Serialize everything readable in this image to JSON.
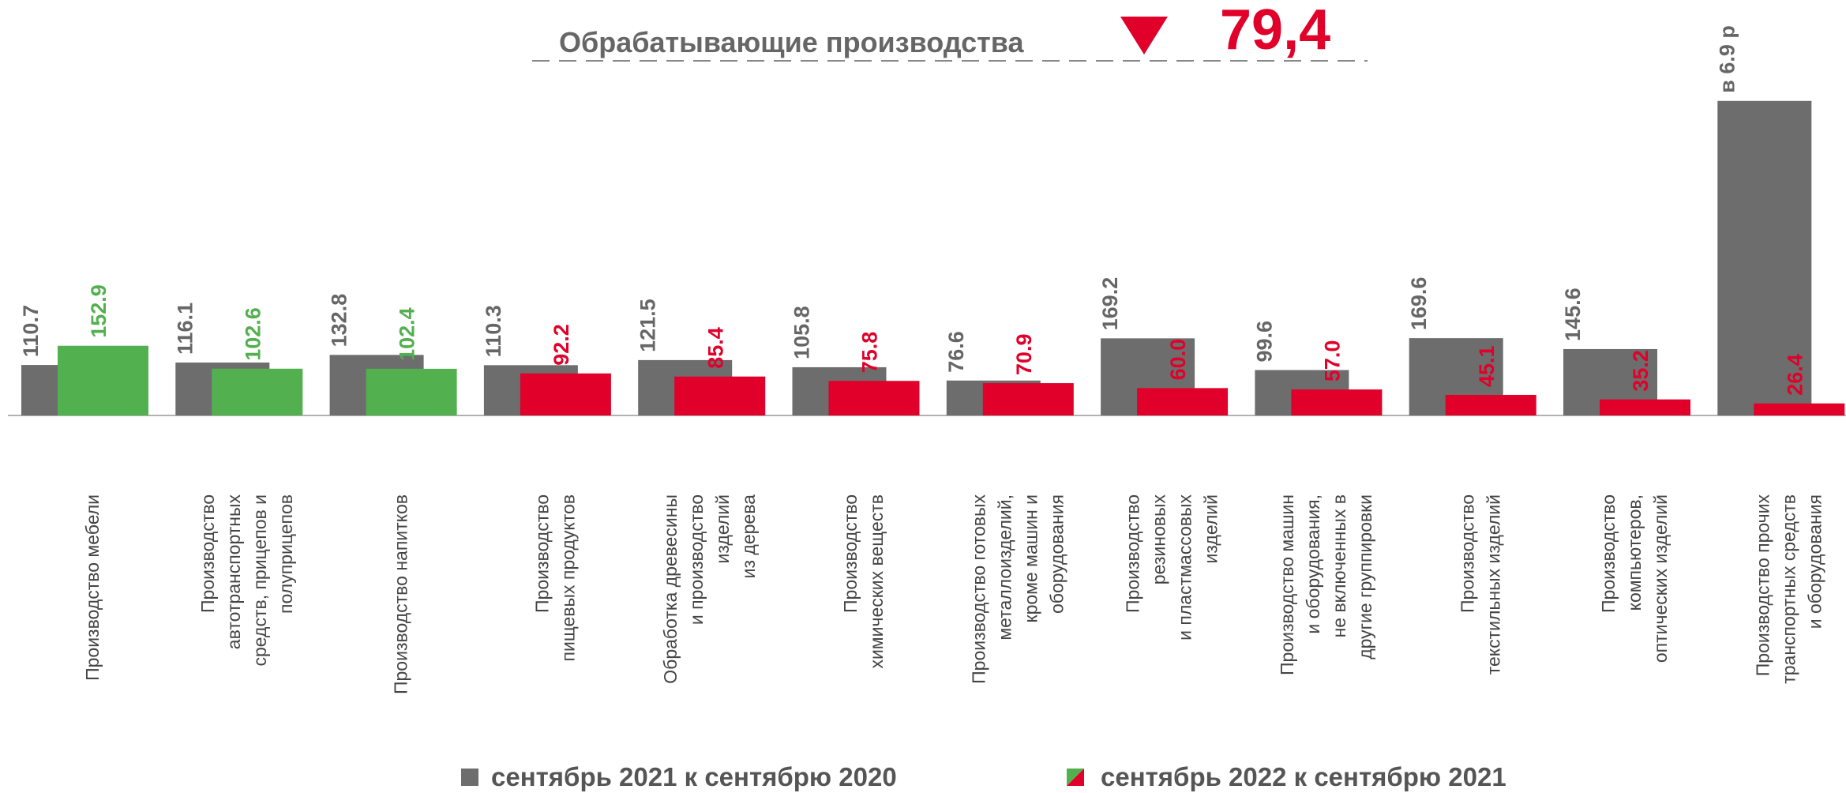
{
  "chart_data": {
    "type": "bar",
    "headline": {
      "label": "Обрабатывающие производства",
      "value": 79.4,
      "value_label": "79,4",
      "color": "#e0002a"
    },
    "categories": [
      [
        "Производство мебели"
      ],
      [
        "Производство",
        "автотранспортных",
        "средств, прицепов и",
        "полуприцепов"
      ],
      [
        "Производство напитков"
      ],
      [
        "Производство",
        "пищевых продуктов"
      ],
      [
        "Обработка древесины",
        "и производство",
        "изделий",
        "из дерева"
      ],
      [
        "Производство",
        "химических веществ"
      ],
      [
        "Производство готовых",
        "металлоизделий,",
        "кроме машин и",
        "оборудования"
      ],
      [
        "Производство",
        "резиновых",
        "и пластмассовых",
        "изделий"
      ],
      [
        "Производство машин",
        "и оборудования,",
        "не включенных в",
        "другие группировки"
      ],
      [
        "Производство",
        "текстильных изделий"
      ],
      [
        "Производство",
        "компьютеров,",
        "оптических изделий"
      ],
      [
        "Производство прочих",
        "транспортных средств",
        "и оборудования"
      ]
    ],
    "series": [
      {
        "name": "сентябрь 2021 к сентябрю 2020",
        "color": "#6d6d6d",
        "values": [
          110.7,
          116.1,
          132.8,
          110.3,
          121.5,
          105.8,
          76.6,
          169.2,
          99.6,
          169.6,
          145.6,
          690
        ],
        "value_labels": [
          "110.7",
          "116.1",
          "132.8",
          "110.3",
          "121.5",
          "105.8",
          "76.6",
          "169.2",
          "99.6",
          "169.6",
          "145.6",
          "в 6.9 р"
        ]
      },
      {
        "name": "сентябрь 2022 к сентябрю 2021",
        "colors": [
          "#52b04f",
          "#52b04f",
          "#52b04f",
          "#e0002a",
          "#e0002a",
          "#e0002a",
          "#e0002a",
          "#e0002a",
          "#e0002a",
          "#e0002a",
          "#e0002a",
          "#e0002a"
        ],
        "values": [
          152.9,
          102.6,
          102.4,
          92.2,
          85.4,
          75.8,
          70.9,
          60.0,
          57.0,
          45.1,
          35.2,
          26.4
        ],
        "value_labels": [
          "152.9",
          "102.6",
          "102.4",
          "92.2",
          "85.4",
          "75.8",
          "70.9",
          "60.0",
          "57.0",
          "45.1",
          "35.2",
          "26.4"
        ]
      }
    ],
    "ylim": [
      0,
      700
    ]
  }
}
